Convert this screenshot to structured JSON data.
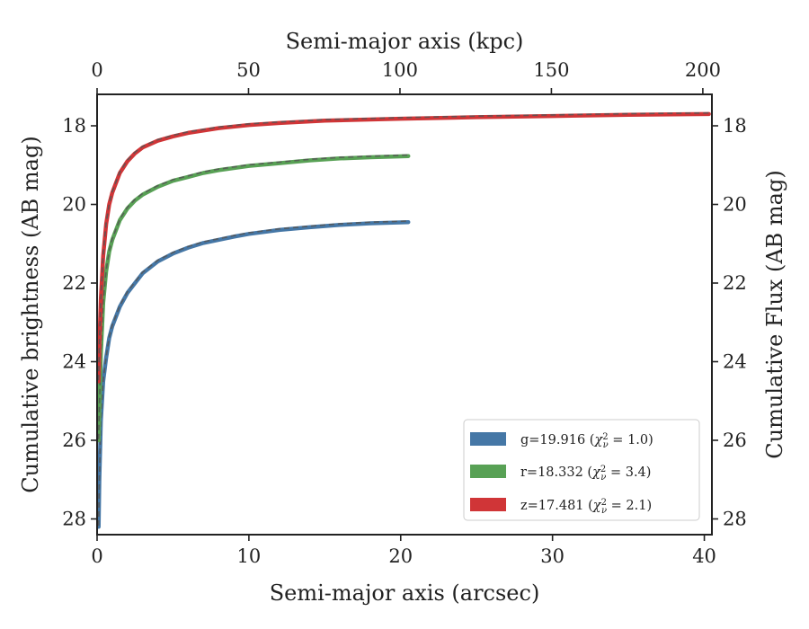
{
  "chart_data": {
    "type": "line",
    "xlabel": "Semi-major axis (arcsec)",
    "ylabel": "Cumulative brightness (AB mag)",
    "x2label": "Semi-major axis (kpc)",
    "y2label": "Cumulative Flux (AB mag)",
    "xlim": [
      0,
      40.5
    ],
    "ylim": [
      28.4,
      17.2
    ],
    "x2lim": [
      0,
      203
    ],
    "xticks": [
      0,
      10,
      20,
      30,
      40
    ],
    "yticks": [
      18,
      20,
      22,
      24,
      26,
      28
    ],
    "x2ticks": [
      0,
      50,
      100,
      150,
      200
    ],
    "grid": false,
    "legend_position": "lower-right",
    "series": [
      {
        "name": "g=19.916 (χ²ν = 1.0)",
        "legend_main": "g=19.916 (",
        "legend_chi": "χ",
        "legend_nu": "ν",
        "legend_sup": "2",
        "legend_rest": " = 1.0)",
        "color": "#4577a6",
        "x": [
          0.1,
          0.15,
          0.25,
          0.4,
          0.6,
          0.8,
          1.0,
          1.5,
          2.0,
          2.5,
          3.0,
          4.0,
          5.0,
          6.0,
          7.0,
          8.0,
          9.0,
          10.0,
          12.0,
          14.0,
          16.0,
          18.0,
          20.5
        ],
        "y": [
          28.2,
          27.0,
          25.5,
          24.5,
          23.9,
          23.4,
          23.1,
          22.6,
          22.25,
          22.0,
          21.75,
          21.45,
          21.25,
          21.1,
          20.98,
          20.9,
          20.82,
          20.75,
          20.65,
          20.58,
          20.52,
          20.48,
          20.45
        ]
      },
      {
        "name": "r=18.332 (χ²ν = 3.4)",
        "legend_main": "r=18.332 (",
        "legend_chi": "χ",
        "legend_nu": "ν",
        "legend_sup": "2",
        "legend_rest": " = 3.4)",
        "color": "#58a155",
        "x": [
          0.1,
          0.15,
          0.25,
          0.4,
          0.6,
          0.8,
          1.0,
          1.5,
          2.0,
          2.5,
          3.0,
          4.0,
          5.0,
          6.0,
          7.0,
          8.0,
          10.0,
          12.0,
          14.0,
          16.0,
          18.0,
          20.5
        ],
        "y": [
          26.0,
          25.2,
          23.8,
          22.5,
          21.7,
          21.2,
          20.9,
          20.4,
          20.1,
          19.9,
          19.75,
          19.55,
          19.4,
          19.3,
          19.2,
          19.13,
          19.02,
          18.95,
          18.88,
          18.83,
          18.8,
          18.77
        ]
      },
      {
        "name": "z=17.481 (χ²ν = 2.1)",
        "legend_main": "z=17.481 (",
        "legend_chi": "χ",
        "legend_nu": "ν",
        "legend_sup": "2",
        "legend_rest": " = 2.1)",
        "color": "#d03537",
        "x": [
          0.1,
          0.15,
          0.25,
          0.4,
          0.6,
          0.8,
          1.0,
          1.5,
          2.0,
          2.5,
          3.0,
          4.0,
          5.0,
          6.0,
          8.0,
          10.0,
          12.0,
          15.0,
          20.0,
          25.0,
          30.0,
          35.0,
          40.3
        ],
        "y": [
          24.5,
          23.6,
          22.4,
          21.3,
          20.5,
          20.0,
          19.7,
          19.2,
          18.9,
          18.7,
          18.55,
          18.38,
          18.27,
          18.18,
          18.06,
          17.98,
          17.93,
          17.87,
          17.82,
          17.78,
          17.75,
          17.72,
          17.7
        ]
      }
    ]
  }
}
